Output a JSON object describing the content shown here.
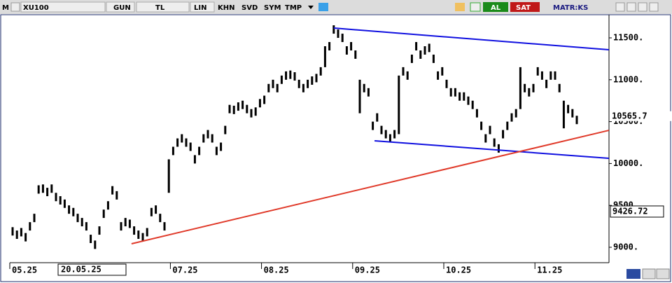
{
  "toolbar": {
    "menu": "M",
    "symbol": "XU100",
    "period": "GUN",
    "currency": "TL",
    "scale": "LIN",
    "buttons": [
      "KHN",
      "SVD",
      "SYM",
      "TMP"
    ],
    "buy": "AL",
    "sell": "SAT",
    "matrix": "MATR:KS"
  },
  "chart_data": {
    "type": "hilo",
    "color": "#000000",
    "categories": [
      "05.25",
      null,
      null,
      null,
      null,
      null,
      null,
      null,
      null,
      null,
      null,
      null,
      null,
      null,
      null,
      null,
      null,
      null,
      null,
      null,
      null,
      null,
      null,
      null,
      null,
      null,
      null,
      null,
      null,
      null,
      null,
      null,
      null,
      null,
      null,
      null,
      null,
      "07.25",
      null,
      null,
      null,
      null,
      null,
      null,
      null,
      null,
      null,
      null,
      null,
      null,
      null,
      null,
      null,
      null,
      null,
      null,
      null,
      null,
      "08.25",
      null,
      null,
      null,
      null,
      null,
      null,
      null,
      null,
      null,
      null,
      null,
      null,
      null,
      null,
      null,
      null,
      null,
      null,
      null,
      null,
      "09.25",
      null,
      null,
      null,
      null,
      null,
      null,
      null,
      null,
      null,
      null,
      null,
      null,
      null,
      null,
      null,
      null,
      null,
      null,
      null,
      null,
      "10.25",
      null,
      null,
      null,
      null,
      null,
      null,
      null,
      null,
      null,
      null,
      null,
      null,
      null,
      null,
      null,
      null,
      null,
      null,
      null,
      null,
      "11.25",
      null,
      null,
      null,
      null,
      null,
      null,
      null,
      null,
      null
    ],
    "high": [
      9240,
      9200,
      9230,
      9170,
      9300,
      9400,
      9740,
      9750,
      9710,
      9750,
      9650,
      9610,
      9570,
      9500,
      9470,
      9400,
      9350,
      9300,
      9150,
      9080,
      9250,
      9450,
      9550,
      9730,
      9670,
      9300,
      9350,
      9330,
      9250,
      9200,
      9170,
      9230,
      9470,
      9500,
      9400,
      9300,
      10050,
      10200,
      10300,
      10350,
      10300,
      10250,
      10100,
      10200,
      10350,
      10400,
      10350,
      10200,
      10250,
      10450,
      10700,
      10690,
      10730,
      10750,
      10700,
      10650,
      10670,
      10770,
      10810,
      10950,
      11000,
      10950,
      11050,
      11100,
      11110,
      11090,
      11000,
      10950,
      11000,
      11040,
      11070,
      11150,
      11400,
      11450,
      11650,
      11600,
      11550,
      11400,
      11450,
      11350,
      11000,
      10950,
      10900,
      10500,
      10600,
      10450,
      10400,
      10350,
      10400,
      11050,
      11150,
      11100,
      11300,
      11450,
      11350,
      11400,
      11430,
      11300,
      11100,
      11150,
      11000,
      10900,
      10900,
      10850,
      10850,
      10800,
      10750,
      10650,
      10500,
      10350,
      10450,
      10300,
      10230,
      10400,
      10500,
      10600,
      10650,
      11150,
      10950,
      10900,
      10950,
      11150,
      11100,
      11000,
      11100,
      11100,
      10950,
      10750,
      10700,
      10650,
      10570
    ],
    "low": [
      9140,
      9100,
      9130,
      9070,
      9200,
      9300,
      9640,
      9650,
      9610,
      9650,
      9550,
      9510,
      9470,
      9400,
      9370,
      9300,
      9250,
      9200,
      9050,
      8980,
      9150,
      9350,
      9450,
      9630,
      9570,
      9200,
      9250,
      9230,
      9150,
      9100,
      9070,
      9130,
      9370,
      9400,
      9300,
      9200,
      9650,
      10100,
      10200,
      10250,
      10200,
      10150,
      10000,
      10100,
      10250,
      10300,
      10250,
      10100,
      10150,
      10350,
      10600,
      10590,
      10630,
      10650,
      10600,
      10550,
      10570,
      10670,
      10710,
      10850,
      10900,
      10850,
      10950,
      11000,
      11010,
      10990,
      10900,
      10850,
      10900,
      10940,
      10970,
      11050,
      11150,
      11350,
      11550,
      11500,
      11450,
      11300,
      11350,
      11250,
      10600,
      10850,
      10800,
      10400,
      10500,
      10350,
      10300,
      10250,
      10300,
      10350,
      11050,
      11000,
      11200,
      11350,
      11250,
      11300,
      11330,
      11200,
      11000,
      11050,
      10900,
      10800,
      10800,
      10750,
      10750,
      10700,
      10650,
      10550,
      10400,
      10250,
      10350,
      10200,
      10130,
      10300,
      10400,
      10500,
      10550,
      10650,
      10850,
      10800,
      10850,
      11050,
      11000,
      10900,
      11000,
      11000,
      10850,
      10420,
      10600,
      10550,
      10470
    ],
    "ylim": [
      8841,
      11768
    ],
    "yticks": [
      {
        "value": 9000,
        "label": "9000."
      },
      {
        "value": 9500,
        "label": "9500."
      },
      {
        "value": 10000,
        "label": "10000."
      },
      {
        "value": 10500,
        "label": "10500."
      },
      {
        "value": 11000,
        "label": "11000."
      },
      {
        "value": 11500,
        "label": "11500."
      }
    ],
    "trendlines": [
      {
        "color": "#1010e0",
        "x": [
          74,
          137.4
        ],
        "values": [
          11617,
          11358
        ]
      },
      {
        "color": "#1010e0",
        "x": [
          83.4,
          137.4
        ],
        "values": [
          10271,
          10062
        ]
      },
      {
        "color": "#e03a2a",
        "x": [
          27.4,
          137.4
        ],
        "values": [
          9042,
          10396
        ]
      }
    ],
    "last_value": {
      "value": 10565.7,
      "label": "10565.7"
    },
    "cursor_value": 9426.72,
    "cursor_date": "20.05.25"
  }
}
